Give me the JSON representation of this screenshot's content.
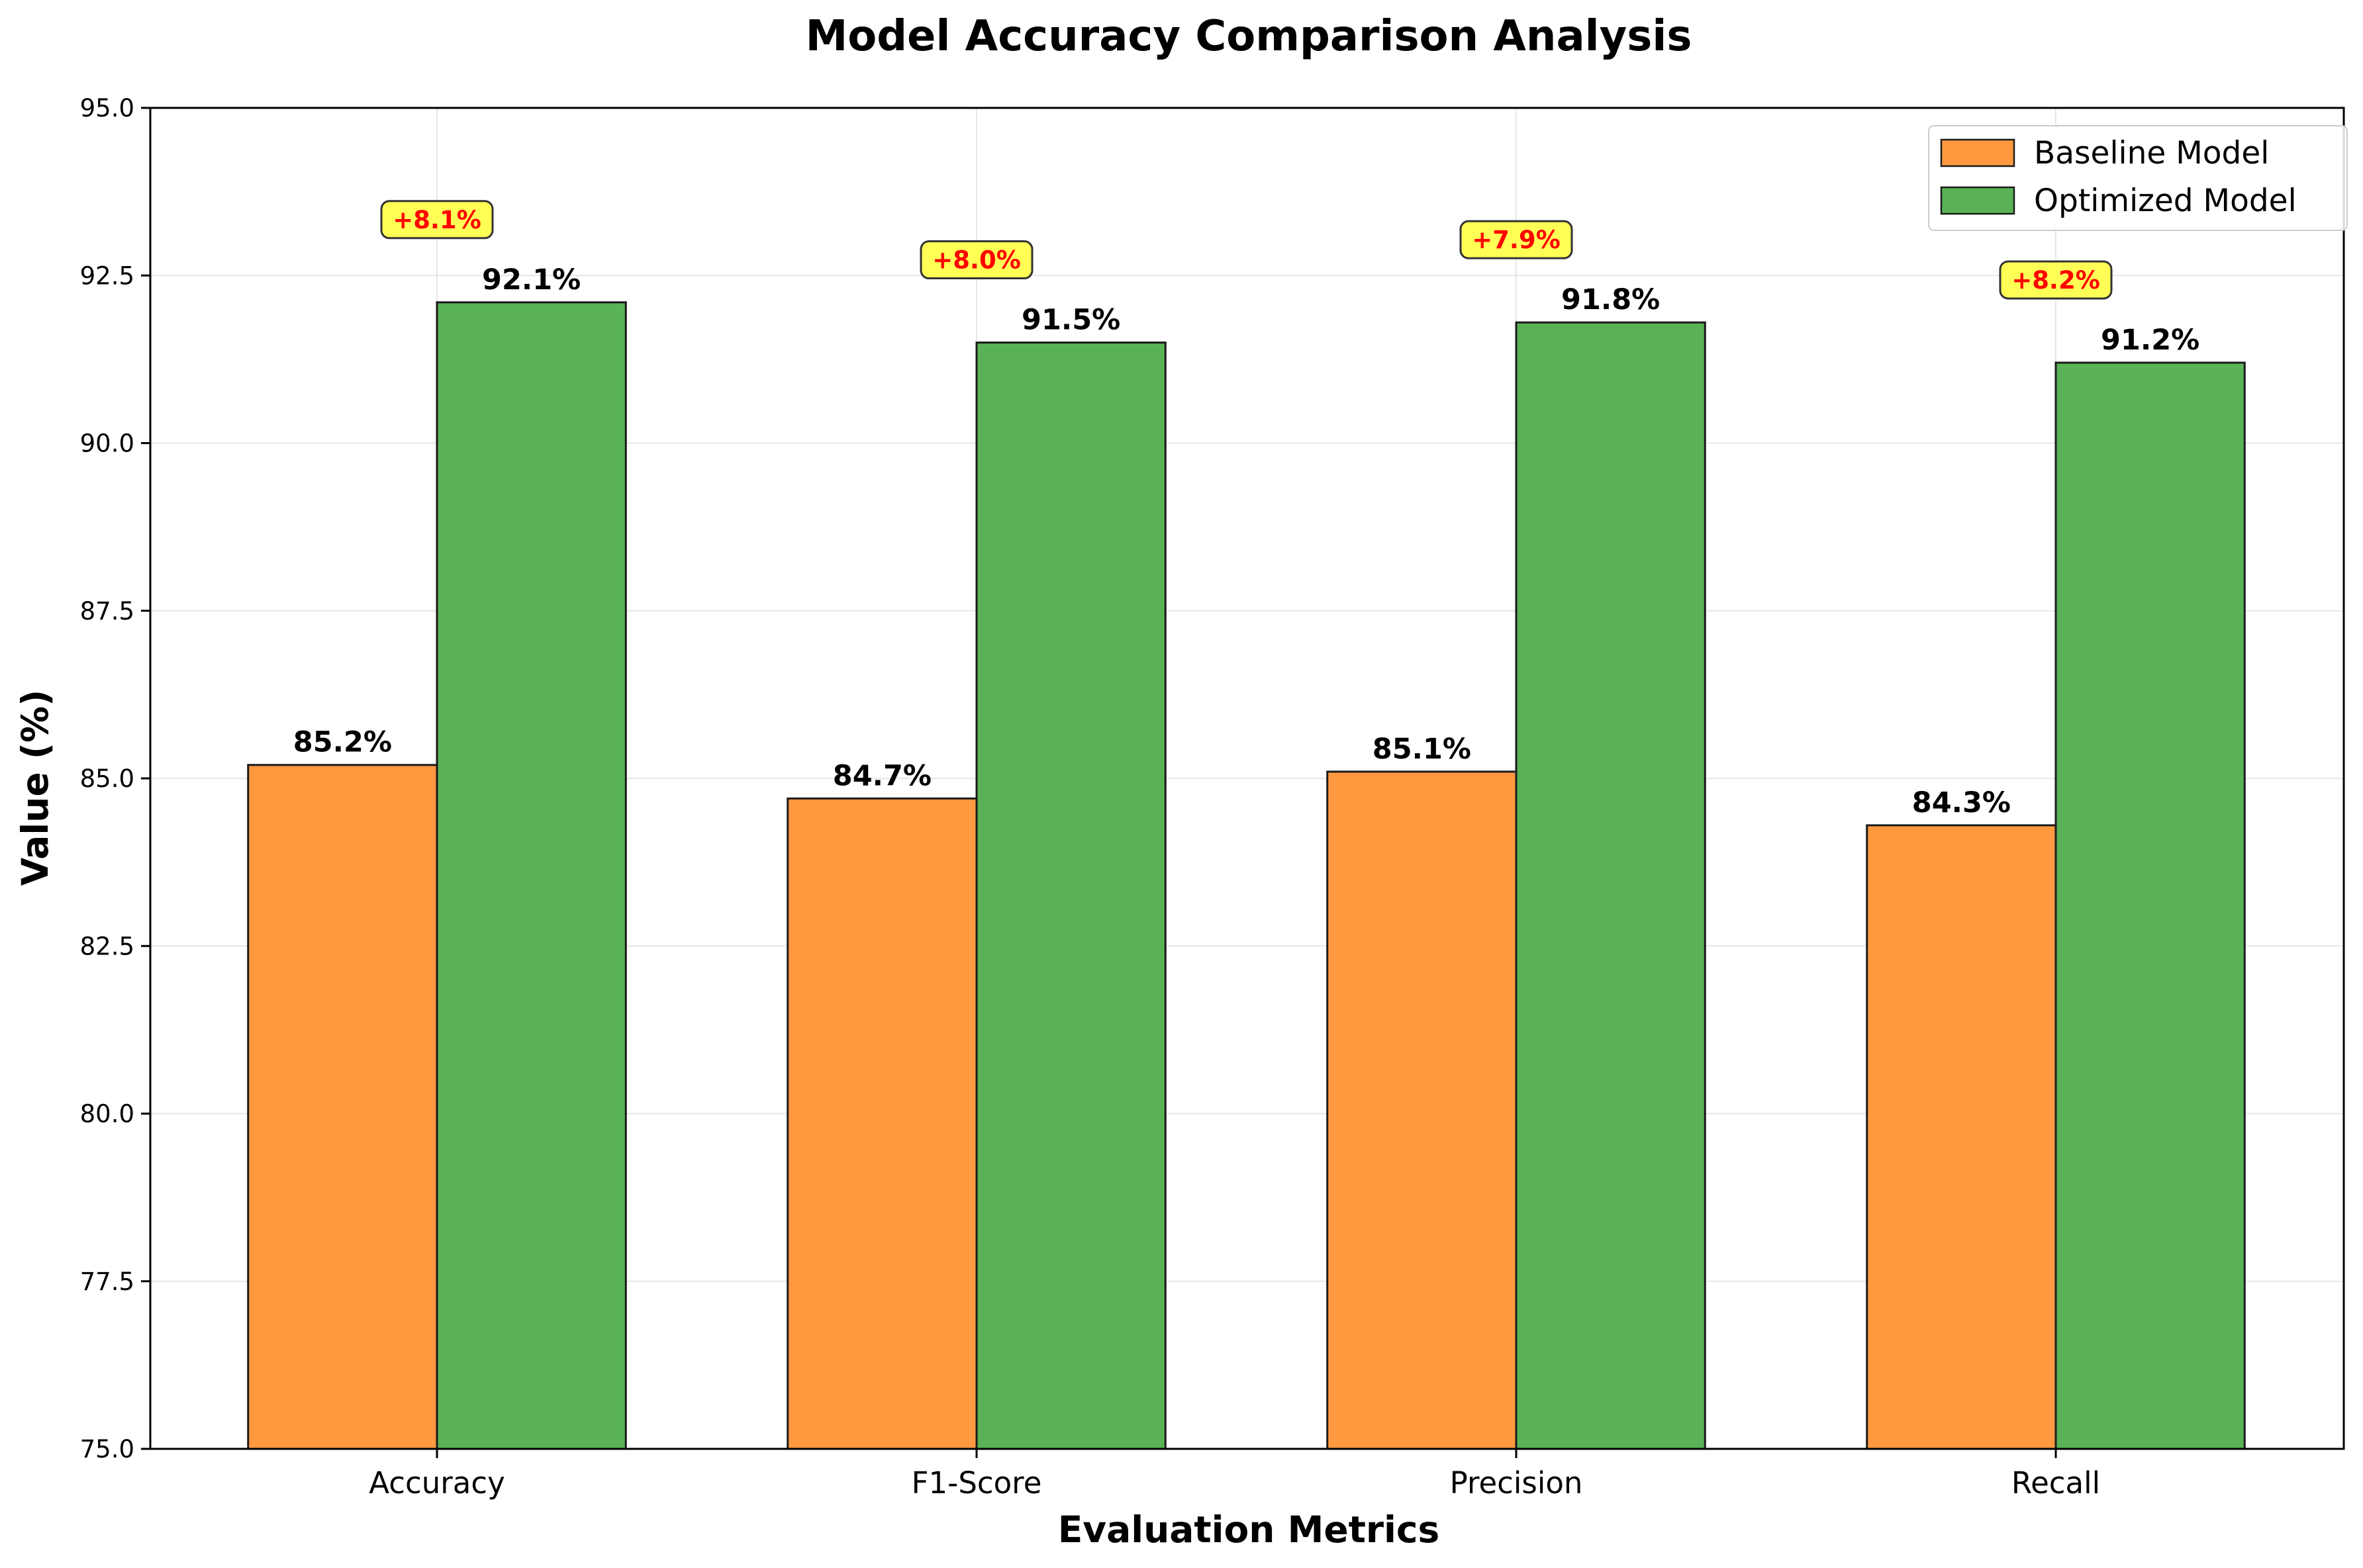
{
  "chart_data": {
    "type": "bar",
    "title": "Model Accuracy Comparison Analysis",
    "xlabel": "Evaluation Metrics",
    "ylabel": "Value (%)",
    "ylim": [
      75.0,
      95.0
    ],
    "yticks": [
      "75.0",
      "77.5",
      "80.0",
      "82.5",
      "85.0",
      "87.5",
      "90.0",
      "92.5",
      "95.0"
    ],
    "grid": true,
    "legend_position": "top-right",
    "categories": [
      "Accuracy",
      "F1-Score",
      "Precision",
      "Recall"
    ],
    "series": [
      {
        "name": "Baseline Model",
        "color": "#ff9940",
        "values": [
          85.2,
          84.7,
          85.1,
          84.3
        ],
        "labels": [
          "85.2%",
          "84.7%",
          "85.1%",
          "84.3%"
        ]
      },
      {
        "name": "Optimized Model",
        "color": "#59b356",
        "values": [
          92.1,
          91.5,
          91.8,
          91.2
        ],
        "labels": [
          "92.1%",
          "91.5%",
          "91.8%",
          "91.2%"
        ]
      }
    ],
    "improvements": {
      "labels": [
        "+8.1%",
        "+8.0%",
        "+7.9%",
        "+8.2%"
      ],
      "box_color": "#ffff44",
      "text_color": "#ff0000"
    }
  }
}
